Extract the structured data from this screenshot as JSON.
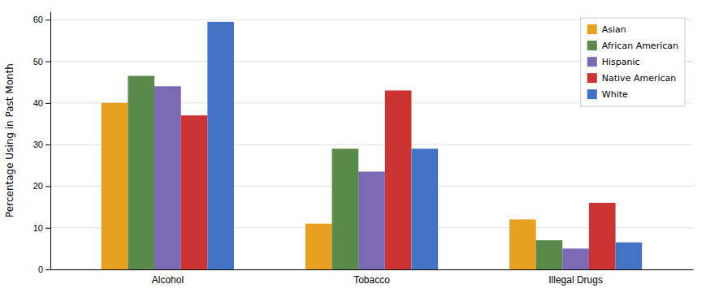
{
  "chart_data": {
    "type": "bar",
    "categories": [
      "Alcohol",
      "Tobacco",
      "Illegal Drugs"
    ],
    "series": [
      {
        "name": "Asian",
        "color": "#E8A020",
        "values": [
          40,
          11,
          12
        ]
      },
      {
        "name": "African American",
        "color": "#5A8A4A",
        "values": [
          46.5,
          29,
          7
        ]
      },
      {
        "name": "Hispanic",
        "color": "#7B6BB5",
        "values": [
          44,
          23.5,
          5
        ]
      },
      {
        "name": "Native American",
        "color": "#CC3333",
        "values": [
          37,
          43,
          16
        ]
      },
      {
        "name": "White",
        "color": "#4472C4",
        "values": [
          59.5,
          29,
          6.5
        ]
      }
    ],
    "ylabel": "Percentage Using in Past Month",
    "ylim": [
      0,
      62
    ],
    "yticks": [
      0,
      10,
      20,
      30,
      40,
      50,
      60
    ],
    "grid": true,
    "legend": "upper right"
  }
}
